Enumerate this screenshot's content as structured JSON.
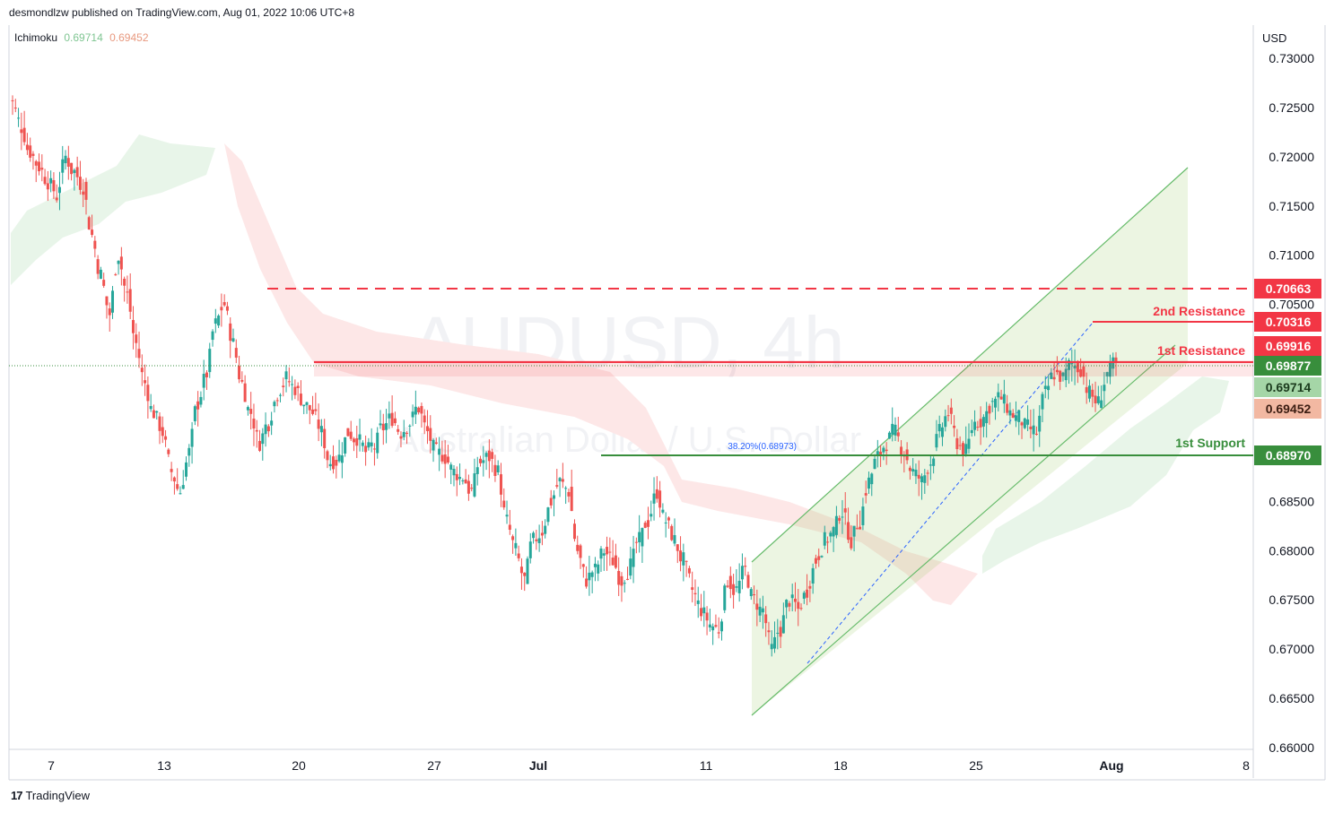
{
  "header": {
    "publisher": "desmondlzw published on TradingView.com, Aug 01, 2022 10:06 UTC+8"
  },
  "indicator": {
    "name": "Ichimoku",
    "value_a": "0.69714",
    "value_b": "0.69452"
  },
  "footer": {
    "brand": "TradingView",
    "logo_icon": "tradingview-logo-icon"
  },
  "colors": {
    "up": "#26a69a",
    "down": "#ef5350",
    "resistance": "#f23645",
    "support": "#388e3c",
    "channel": "#8bc34a",
    "cloud_green": "#e6f4e6",
    "cloud_red": "#fde3e3"
  },
  "chart_data": {
    "type": "candlestick",
    "symbol": "AUDUSD",
    "interval": "4h",
    "watermark_symbol": "AUDUSD, 4h",
    "watermark_name": "Australian Dollar / U.S. Dollar",
    "currency": "USD",
    "ylim": [
      0.66,
      0.7325
    ],
    "y_ticks": [
      "0.73000",
      "0.72500",
      "0.72000",
      "0.71500",
      "0.71000",
      "0.70500",
      "0.68500",
      "0.68000",
      "0.67500",
      "0.67000",
      "0.66500",
      "0.66000"
    ],
    "x_ticks": [
      "7",
      "13",
      "20",
      "27",
      "Jul",
      "11",
      "18",
      "25",
      "Aug",
      "8"
    ],
    "levels": [
      {
        "name": "2nd Resistance",
        "value": 0.70316,
        "label": "0.70316",
        "style": "solid"
      },
      {
        "name": "1st Resistance",
        "value": 0.69916,
        "label": "0.69916",
        "style": "solid"
      },
      {
        "name": "",
        "value": 0.70663,
        "label": "0.70663",
        "style": "dashed"
      },
      {
        "name": "1st Support",
        "value": 0.6897,
        "label": "0.68970",
        "style": "solid"
      }
    ],
    "price_labels": [
      {
        "value": 0.69877,
        "label": "0.69877",
        "kind": "last"
      },
      {
        "value": 0.69714,
        "label": "0.69714",
        "kind": "ichimoku_a"
      },
      {
        "value": 0.69452,
        "label": "0.69452",
        "kind": "ichimoku_b"
      }
    ],
    "fib": {
      "label": "38.20%(0.68973)",
      "value": 0.68973
    },
    "candles_approx": [
      0.7255,
      0.723,
      0.7205,
      0.719,
      0.7175,
      0.716,
      0.72,
      0.7185,
      0.717,
      0.712,
      0.708,
      0.704,
      0.71,
      0.706,
      0.701,
      0.697,
      0.694,
      0.692,
      0.688,
      0.686,
      0.69,
      0.695,
      0.698,
      0.703,
      0.705,
      0.701,
      0.697,
      0.694,
      0.691,
      0.693,
      0.696,
      0.6975,
      0.6965,
      0.695,
      0.694,
      0.692,
      0.689,
      0.6895,
      0.692,
      0.6915,
      0.69,
      0.6905,
      0.6925,
      0.6935,
      0.692,
      0.693,
      0.6945,
      0.692,
      0.69,
      0.6895,
      0.688,
      0.6875,
      0.686,
      0.689,
      0.6895,
      0.688,
      0.683,
      0.68,
      0.677,
      0.681,
      0.682,
      0.685,
      0.687,
      0.686,
      0.68,
      0.677,
      0.678,
      0.68,
      0.679,
      0.677,
      0.6785,
      0.681,
      0.683,
      0.686,
      0.683,
      0.681,
      0.679,
      0.676,
      0.674,
      0.6725,
      0.672,
      0.677,
      0.676,
      0.678,
      0.675,
      0.674,
      0.67,
      0.672,
      0.675,
      0.674,
      0.676,
      0.679,
      0.681,
      0.682,
      0.684,
      0.681,
      0.683,
      0.687,
      0.6895,
      0.691,
      0.692,
      0.69,
      0.688,
      0.687,
      0.689,
      0.692,
      0.694,
      0.691,
      0.69,
      0.693,
      0.6935,
      0.695,
      0.6955,
      0.694,
      0.6935,
      0.6925,
      0.692,
      0.696,
      0.698,
      0.6975,
      0.699,
      0.6985,
      0.696,
      0.695,
      0.698,
      0.6988
    ]
  }
}
